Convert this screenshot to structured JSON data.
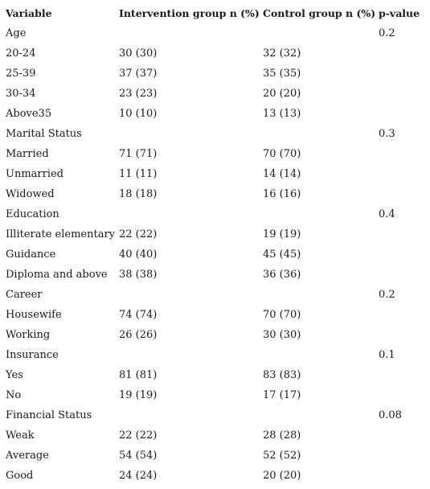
{
  "table": {
    "headers": [
      "Variable",
      "Intervention group n (%)",
      "Control group n (%)",
      "p-value"
    ],
    "rows": [
      [
        "Age",
        "",
        "",
        "0.2"
      ],
      [
        "20-24",
        "30 (30)",
        "32 (32)",
        ""
      ],
      [
        "25-39",
        "37 (37)",
        "35 (35)",
        ""
      ],
      [
        "30-34",
        "23 (23)",
        "20 (20)",
        ""
      ],
      [
        "Above35",
        "10 (10)",
        "13 (13)",
        ""
      ],
      [
        "Marital Status",
        "",
        "",
        "0.3"
      ],
      [
        "Married",
        "71 (71)",
        "70 (70)",
        ""
      ],
      [
        "Unmarried",
        "11 (11)",
        "14 (14)",
        ""
      ],
      [
        "Widowed",
        "18 (18)",
        "16 (16)",
        ""
      ],
      [
        "Education",
        "",
        "",
        "0.4"
      ],
      [
        "Illiterate elementary",
        "22 (22)",
        "19 (19)",
        ""
      ],
      [
        "Guidance",
        "40 (40)",
        "45 (45)",
        ""
      ],
      [
        "Diploma and above",
        "38 (38)",
        "36 (36)",
        ""
      ],
      [
        "Career",
        "",
        "",
        "0.2"
      ],
      [
        "Housewife",
        "74 (74)",
        "70 (70)",
        ""
      ],
      [
        "Working",
        "26 (26)",
        "30 (30)",
        ""
      ],
      [
        "Insurance",
        "",
        "",
        "0.1"
      ],
      [
        "Yes",
        "81 (81)",
        "83 (83)",
        ""
      ],
      [
        "No",
        "19 (19)",
        "17 (17)",
        ""
      ],
      [
        "Financial Status",
        "",
        "",
        "0.08"
      ],
      [
        "Weak",
        "22 (22)",
        "28 (28)",
        ""
      ],
      [
        "Average",
        "54 (54)",
        "52 (52)",
        ""
      ],
      [
        "Good",
        "24 (24)",
        "20 (20)",
        ""
      ]
    ]
  }
}
